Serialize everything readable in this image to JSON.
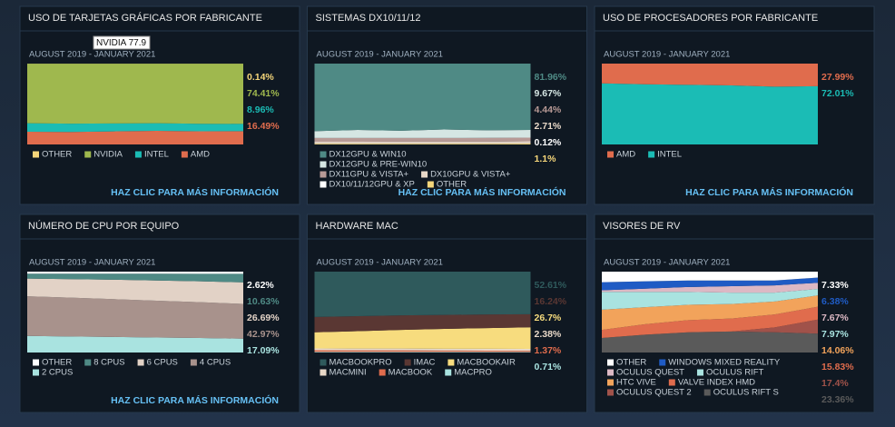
{
  "chart_data": [
    {
      "type": "area",
      "title": "USO DE TARJETAS GRÁFICAS POR FABRICANTE",
      "subtitle": "AUGUST 2019 - JANUARY 2021",
      "link": "HAZ CLIC PARA MÁS INFORMACIÓN",
      "annotation": "NVIDIA 77.9",
      "categories": [
        null,
        null,
        null,
        null,
        null,
        null
      ],
      "ylim": [
        0,
        100
      ],
      "series": [
        {
          "name": "OTHER",
          "color": "#f5d67a",
          "values": [
            0.2,
            0.2,
            0.15,
            0.15,
            0.15,
            0.14
          ],
          "value_labels": [
            null,
            null,
            null,
            null,
            null,
            "0.14%"
          ]
        },
        {
          "name": "NVIDIA",
          "color": "#9fb84e",
          "values": [
            73.5,
            74.1,
            73.85,
            73.55,
            74.25,
            74.41
          ],
          "value_labels": [
            null,
            null,
            null,
            null,
            null,
            "74.41%"
          ]
        },
        {
          "name": "INTEL",
          "color": "#1bbcb5",
          "values": [
            10.5,
            10.2,
            9.8,
            9.5,
            9.3,
            8.96
          ],
          "value_labels": [
            null,
            null,
            null,
            null,
            null,
            "8.96%"
          ]
        },
        {
          "name": "AMD",
          "color": "#e06c4d",
          "values": [
            15.8,
            15.5,
            16.2,
            16.8,
            16.3,
            16.49
          ],
          "value_labels": [
            null,
            null,
            null,
            null,
            null,
            "16.49%"
          ]
        }
      ]
    },
    {
      "type": "area",
      "title": "SISTEMAS DX10/11/12",
      "subtitle": "AUGUST 2019 - JANUARY 2021",
      "link": "HAZ CLIC PARA MÁS INFORMACIÓN",
      "categories": [
        null,
        null,
        null,
        null,
        null,
        null
      ],
      "ylim": [
        0,
        100
      ],
      "series": [
        {
          "name": "DX12GPU & WIN10",
          "color": "#4f8a85",
          "values": [
            83.5,
            82.0,
            83.0,
            81.5,
            82.5,
            81.96
          ],
          "value_labels": [
            null,
            null,
            null,
            null,
            null,
            "81.96%"
          ]
        },
        {
          "name": "DX12GPU & PRE-WIN10",
          "color": "#d5e6e3",
          "values": [
            8.5,
            10.0,
            9.0,
            10.5,
            9.4,
            9.67
          ],
          "value_labels": [
            null,
            null,
            null,
            null,
            null,
            "9.67%"
          ]
        },
        {
          "name": "DX11GPU & VISTA+",
          "color": "#b89a96",
          "values": [
            4.6,
            4.6,
            4.5,
            4.5,
            4.6,
            4.44
          ],
          "value_labels": [
            null,
            null,
            null,
            null,
            null,
            "4.44%"
          ]
        },
        {
          "name": "DX10GPU & VISTA+",
          "color": "#e8d8c8",
          "values": [
            2.2,
            2.2,
            2.3,
            2.3,
            2.3,
            2.71
          ],
          "value_labels": [
            null,
            null,
            null,
            null,
            null,
            "2.71%"
          ]
        },
        {
          "name": "DX10/11/12GPU & XP",
          "color": "#ffffff",
          "values": [
            0.2,
            0.2,
            0.2,
            0.2,
            0.2,
            0.12
          ],
          "value_labels": [
            null,
            null,
            null,
            null,
            null,
            "0.12%"
          ]
        },
        {
          "name": "OTHER",
          "color": "#f5d67a",
          "values": [
            1.0,
            1.0,
            1.0,
            1.0,
            1.0,
            1.1
          ],
          "value_labels": [
            null,
            null,
            null,
            null,
            null,
            "1.1%"
          ]
        }
      ]
    },
    {
      "type": "area",
      "title": "USO DE PROCESADORES POR FABRICANTE",
      "subtitle": "AUGUST 2019 - JANUARY 2021",
      "link": "HAZ CLIC PARA MÁS INFORMACIÓN",
      "categories": [
        null,
        null,
        null,
        null,
        null,
        null
      ],
      "ylim": [
        0,
        100
      ],
      "series": [
        {
          "name": "AMD",
          "color": "#e06c4d",
          "values": [
            24.5,
            25.5,
            26.2,
            27.0,
            28.5,
            27.99
          ],
          "value_labels": [
            null,
            null,
            null,
            null,
            null,
            "27.99%"
          ]
        },
        {
          "name": "INTEL",
          "color": "#1bbcb5",
          "values": [
            75.5,
            74.5,
            73.8,
            73.0,
            71.5,
            72.01
          ],
          "value_labels": [
            null,
            null,
            null,
            null,
            null,
            "72.01%"
          ]
        }
      ]
    },
    {
      "type": "area",
      "title": "NÚMERO DE CPU POR EQUIPO",
      "subtitle": "AUGUST 2019 - JANUARY 2021",
      "link": "HAZ CLIC PARA MÁS INFORMACIÓN",
      "categories": [
        null,
        null,
        null,
        null,
        null,
        null
      ],
      "ylim": [
        0,
        100
      ],
      "series": [
        {
          "name": "OTHER",
          "color": "#ffffff",
          "values": [
            2.5,
            2.5,
            2.5,
            2.5,
            2.6,
            2.62
          ],
          "value_labels": [
            null,
            null,
            null,
            null,
            null,
            "2.62%"
          ]
        },
        {
          "name": "8 CPUS",
          "color": "#4f8a85",
          "values": [
            6.0,
            6.7,
            7.5,
            8.4,
            9.4,
            10.63
          ],
          "value_labels": [
            null,
            null,
            null,
            null,
            null,
            "10.63%"
          ]
        },
        {
          "name": "6 CPUS",
          "color": "#e2d2c6",
          "values": [
            22.0,
            23.0,
            24.0,
            25.0,
            25.8,
            26.69
          ],
          "value_labels": [
            null,
            null,
            null,
            null,
            null,
            "26.69%"
          ]
        },
        {
          "name": "4 CPUS",
          "color": "#a8928c",
          "values": [
            49.0,
            48.0,
            46.8,
            45.5,
            44.2,
            42.97
          ],
          "value_labels": [
            null,
            null,
            null,
            null,
            null,
            "42.97%"
          ]
        },
        {
          "name": "2 CPUS",
          "color": "#a9e3e0",
          "values": [
            20.5,
            19.8,
            19.2,
            18.6,
            18.0,
            17.09
          ],
          "value_labels": [
            null,
            null,
            null,
            null,
            null,
            "17.09%"
          ]
        }
      ]
    },
    {
      "type": "area",
      "title": "HARDWARE MAC",
      "subtitle": "AUGUST 2019 - JANUARY 2021",
      "link": "",
      "categories": [
        null,
        null,
        null,
        null,
        null,
        null
      ],
      "ylim": [
        0,
        100
      ],
      "series": [
        {
          "name": "MACBOOKPRO",
          "color": "#2f5a5c",
          "values": [
            56.0,
            55.1,
            54.1,
            53.5,
            53.0,
            52.61
          ],
          "value_labels": [
            null,
            null,
            null,
            null,
            null,
            "52.61%"
          ]
        },
        {
          "name": "IMAC",
          "color": "#5a3733",
          "values": [
            19.0,
            18.5,
            18.0,
            17.3,
            16.8,
            16.24
          ],
          "value_labels": [
            null,
            null,
            null,
            null,
            null,
            "16.24%"
          ]
        },
        {
          "name": "MACBOOKAIR",
          "color": "#f7dc7e",
          "values": [
            20.0,
            21.5,
            23.0,
            24.5,
            25.5,
            26.7
          ],
          "value_labels": [
            null,
            null,
            null,
            null,
            null,
            "26.7%"
          ]
        },
        {
          "name": "MACMINI",
          "color": "#e8d8c8",
          "values": [
            2.2,
            2.2,
            2.3,
            2.3,
            2.4,
            2.38
          ],
          "value_labels": [
            null,
            null,
            null,
            null,
            null,
            "2.38%"
          ]
        },
        {
          "name": "MACBOOK",
          "color": "#e06c4d",
          "values": [
            2.0,
            1.9,
            1.8,
            1.6,
            1.5,
            1.37
          ],
          "value_labels": [
            null,
            null,
            null,
            null,
            null,
            "1.37%"
          ]
        },
        {
          "name": "MACPRO",
          "color": "#a9e3e0",
          "values": [
            0.8,
            0.8,
            0.8,
            0.8,
            0.8,
            0.71
          ],
          "value_labels": [
            null,
            null,
            null,
            null,
            null,
            "0.71%"
          ]
        }
      ]
    },
    {
      "type": "area",
      "title": "VISORES DE RV",
      "subtitle": "AUGUST 2019 - JANUARY 2021",
      "categories": [
        null,
        null,
        null,
        null,
        null,
        null
      ],
      "ylim": [
        0,
        100
      ],
      "series": [
        {
          "name": "OTHER",
          "color": "#ffffff",
          "values": [
            13,
            12,
            11,
            11,
            11,
            7.33
          ],
          "value_labels": [
            null,
            null,
            null,
            null,
            null,
            "7.33%"
          ]
        },
        {
          "name": "WINDOWS MIXED REALITY",
          "color": "#1f5bc4",
          "values": [
            10,
            9,
            8,
            7,
            6,
            6.38
          ],
          "value_labels": [
            null,
            null,
            null,
            null,
            null,
            "6.38%"
          ]
        },
        {
          "name": "OCULUS QUEST",
          "color": "#dcb8c4",
          "values": [
            2,
            4,
            6,
            8,
            9,
            7.67
          ],
          "value_labels": [
            null,
            null,
            null,
            null,
            null,
            "7.67%"
          ]
        },
        {
          "name": "OCULUS RIFT",
          "color": "#a9e3e0",
          "values": [
            22,
            19,
            16,
            14,
            11,
            7.97
          ],
          "value_labels": [
            null,
            null,
            null,
            null,
            null,
            "7.97%"
          ]
        },
        {
          "name": "HTC VIVE",
          "color": "#f2a35b",
          "values": [
            25,
            21,
            19,
            18,
            16,
            14.06
          ],
          "value_labels": [
            null,
            null,
            null,
            null,
            null,
            "14.06%"
          ]
        },
        {
          "name": "VALVE INDEX HMD",
          "color": "#e06c4d",
          "values": [
            10,
            13,
            15,
            16,
            16,
            15.83
          ],
          "value_labels": [
            null,
            null,
            null,
            null,
            null,
            "15.83%"
          ]
        },
        {
          "name": "OCULUS QUEST 2",
          "color": "#a0524a",
          "values": [
            0,
            0,
            0,
            0,
            6,
            17.4
          ],
          "value_labels": [
            null,
            null,
            null,
            null,
            null,
            "17.4%"
          ]
        },
        {
          "name": "OCULUS RIFT S",
          "color": "#5a5a5a",
          "values": [
            18,
            22,
            25,
            26,
            25,
            23.36
          ],
          "value_labels": [
            null,
            null,
            null,
            null,
            null,
            "23.36%"
          ]
        }
      ]
    }
  ]
}
